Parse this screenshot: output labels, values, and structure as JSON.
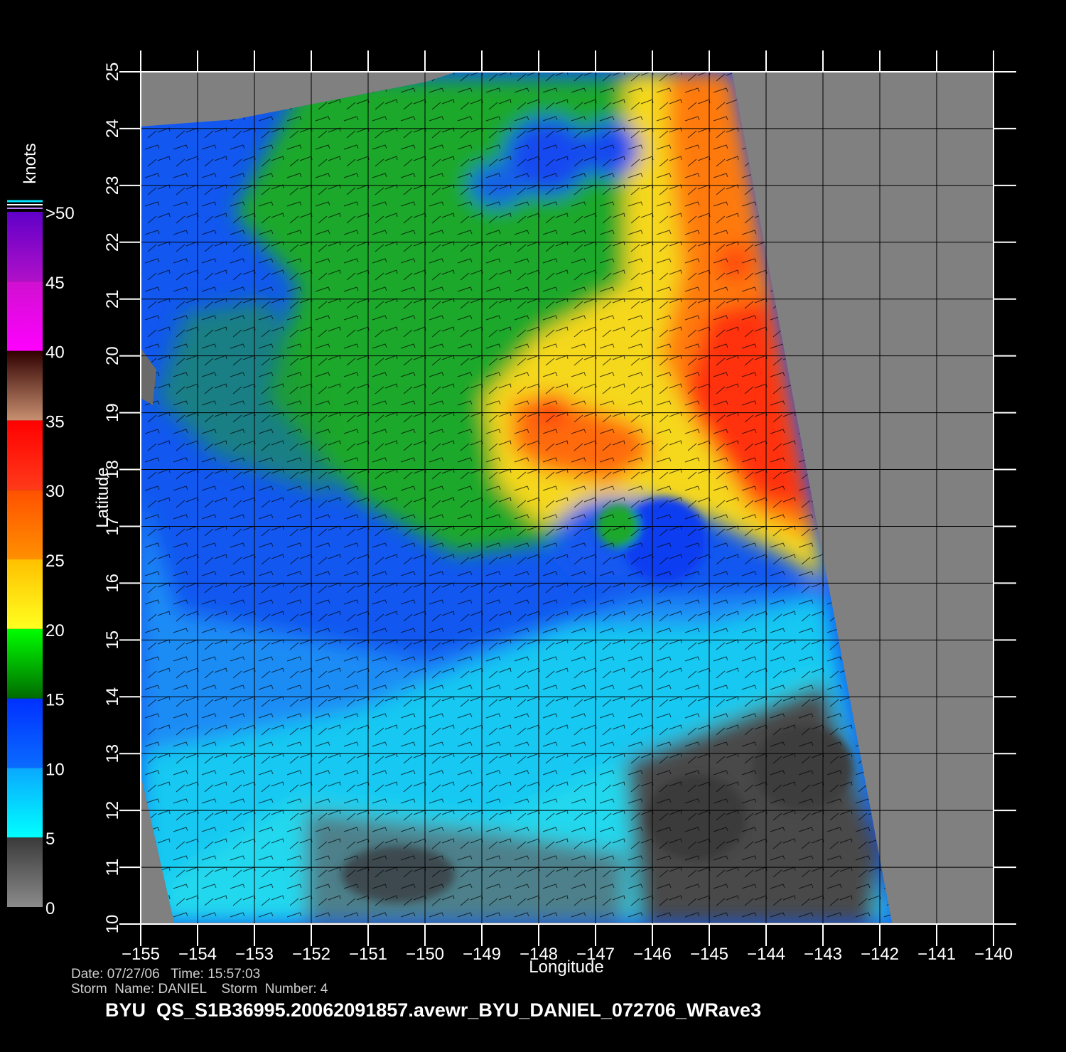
{
  "map": {
    "x_axis": {
      "label": "Longitude",
      "lim": [
        -155,
        -140
      ],
      "ticks": [
        {
          "value": -155,
          "label": "−155"
        },
        {
          "value": -154,
          "label": "−154"
        },
        {
          "value": -153,
          "label": "−153"
        },
        {
          "value": -152,
          "label": "−152"
        },
        {
          "value": -151,
          "label": "−151"
        },
        {
          "value": -150,
          "label": "−150"
        },
        {
          "value": -149,
          "label": "−149"
        },
        {
          "value": -148,
          "label": "−148"
        },
        {
          "value": -147,
          "label": "−147"
        },
        {
          "value": -146,
          "label": "−146"
        },
        {
          "value": -145,
          "label": "−145"
        },
        {
          "value": -144,
          "label": "−144"
        },
        {
          "value": -143,
          "label": "−143"
        },
        {
          "value": -142,
          "label": "−142"
        },
        {
          "value": -141,
          "label": "−141"
        },
        {
          "value": -140,
          "label": "−140"
        }
      ]
    },
    "y_axis": {
      "label": "Latitude",
      "lim": [
        10,
        25
      ],
      "ticks": [
        10,
        11,
        12,
        13,
        14,
        15,
        16,
        17,
        18,
        19,
        20,
        21,
        22,
        23,
        24,
        25
      ]
    },
    "grid": true
  },
  "colorbar": {
    "title": "knots",
    "lim": [
      0,
      50
    ],
    "ticks": [
      0,
      5,
      10,
      15,
      20,
      25,
      30,
      35,
      40,
      45,
      {
        "value": 50,
        "label": ">50"
      }
    ],
    "colors": [
      [
        "#8a8a8a",
        "#3a3a3a"
      ],
      [
        "#00ffff",
        "#0aa8ff"
      ],
      [
        "#0a6cff",
        "#0030ff"
      ],
      [
        "#006a00",
        "#00ff00"
      ],
      [
        "#ffff20",
        "#ffc000"
      ],
      [
        "#ff9000",
        "#ff5000"
      ],
      [
        "#ff3a1a",
        "#ff0000"
      ],
      [
        "#c89070",
        "#300000"
      ],
      [
        "#ff00ff",
        "#d010d0"
      ],
      [
        "#b010c8",
        "#6000c8"
      ]
    ]
  },
  "footer": {
    "line1": "Date: 07/27/06   Time: 15:57:03",
    "line2": "Storm  Name: DANIEL    Storm  Number: 4",
    "title": "BYU  QS_S1B36995.20062091857.avewr_BYU_DANIEL_072706_WRave3"
  }
}
